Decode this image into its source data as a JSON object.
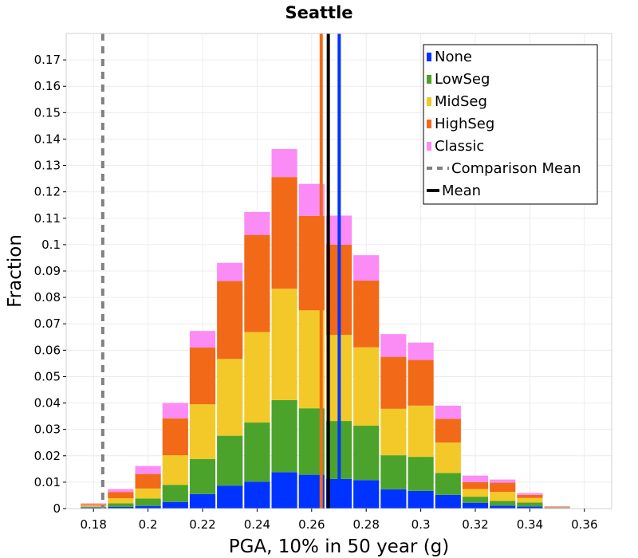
{
  "chart_data": {
    "type": "bar",
    "stacked": true,
    "title": "Seattle",
    "xlabel": "PGA, 10% in 50 year (g)",
    "ylabel": "Fraction",
    "xlim": [
      0.17,
      0.37
    ],
    "ylim": [
      0,
      0.18
    ],
    "bin_width": 0.01,
    "grid": true,
    "legend_position": "top-right",
    "x_ticks": [
      0.18,
      0.2,
      0.22,
      0.24,
      0.26,
      0.28,
      0.3,
      0.32,
      0.34,
      0.36
    ],
    "x_tick_labels": [
      "0.18",
      "0.2",
      "0.22",
      "0.24",
      "0.26",
      "0.28",
      "0.3",
      "0.32",
      "0.34",
      "0.36"
    ],
    "y_ticks": [
      0,
      0.01,
      0.02,
      0.03,
      0.04,
      0.05,
      0.06,
      0.07,
      0.08,
      0.09,
      0.1,
      0.11,
      0.12,
      0.13,
      0.14,
      0.15,
      0.16,
      0.17
    ],
    "y_tick_labels": [
      "0",
      "0.01",
      "0.02",
      "0.03",
      "0.04",
      "0.05",
      "0.06",
      "0.07",
      "0.08",
      "0.09",
      "0.1",
      "0.11",
      "0.12",
      "0.13",
      "0.14",
      "0.15",
      "0.16",
      "0.17"
    ],
    "bin_centers": [
      0.18,
      0.19,
      0.2,
      0.21,
      0.22,
      0.23,
      0.24,
      0.25,
      0.26,
      0.27,
      0.28,
      0.29,
      0.3,
      0.31,
      0.32,
      0.33,
      0.34,
      0.35
    ],
    "series": [
      {
        "name": "None",
        "color": "#0033ff",
        "values": [
          0.0004,
          0.0006,
          0.001,
          0.0025,
          0.0055,
          0.0087,
          0.0102,
          0.0138,
          0.0128,
          0.0112,
          0.0108,
          0.0073,
          0.0067,
          0.0052,
          0.0022,
          0.0011,
          0.0008,
          0.0002
        ]
      },
      {
        "name": "LowSeg",
        "color": "#4ca32b",
        "values": [
          0.0003,
          0.0014,
          0.0028,
          0.0065,
          0.0133,
          0.0189,
          0.0224,
          0.0273,
          0.0252,
          0.022,
          0.0206,
          0.0129,
          0.0129,
          0.0083,
          0.0023,
          0.0018,
          0.0015,
          0.0002
        ]
      },
      {
        "name": "MidSeg",
        "color": "#f2c928",
        "values": [
          0.0005,
          0.0019,
          0.0038,
          0.0112,
          0.0207,
          0.0291,
          0.0343,
          0.0422,
          0.0371,
          0.0326,
          0.0297,
          0.0176,
          0.0194,
          0.0115,
          0.0029,
          0.0034,
          0.0017,
          0.0001
        ]
      },
      {
        "name": "HighSeg",
        "color": "#f26a18",
        "values": [
          0.0004,
          0.0024,
          0.0055,
          0.014,
          0.0215,
          0.0295,
          0.0368,
          0.0423,
          0.0358,
          0.0342,
          0.0253,
          0.0197,
          0.0173,
          0.009,
          0.0026,
          0.0035,
          0.0012,
          0.0002
        ]
      },
      {
        "name": "Classic",
        "color": "#fb8cf5",
        "values": [
          0.0004,
          0.0011,
          0.003,
          0.0058,
          0.0063,
          0.0069,
          0.0087,
          0.0106,
          0.0121,
          0.011,
          0.0096,
          0.0086,
          0.0066,
          0.005,
          0.0025,
          0.0012,
          0.0007,
          0.0002
        ]
      }
    ],
    "reference_lines": [
      {
        "name": "Comparison Mean",
        "x": 0.1834,
        "color": "#808080",
        "dashed": true
      },
      {
        "name": "None mean",
        "x": 0.2701,
        "color": "#0033ff",
        "dashed": false
      },
      {
        "name": "HighSeg mean",
        "x": 0.2635,
        "color": "#f26a18",
        "dashed": false
      },
      {
        "name": "Mean",
        "x": 0.2661,
        "color": "#000000",
        "dashed": false
      }
    ],
    "legend": [
      {
        "label": "None",
        "color": "#0033ff",
        "style": "box"
      },
      {
        "label": "LowSeg",
        "color": "#4ca32b",
        "style": "box"
      },
      {
        "label": "MidSeg",
        "color": "#f2c928",
        "style": "box"
      },
      {
        "label": "HighSeg",
        "color": "#f26a18",
        "style": "box"
      },
      {
        "label": "Classic",
        "color": "#fb8cf5",
        "style": "box"
      },
      {
        "label": "Comparison Mean",
        "color": "#808080",
        "style": "dashed-line"
      },
      {
        "label": "Mean",
        "color": "#000000",
        "style": "line"
      }
    ]
  }
}
